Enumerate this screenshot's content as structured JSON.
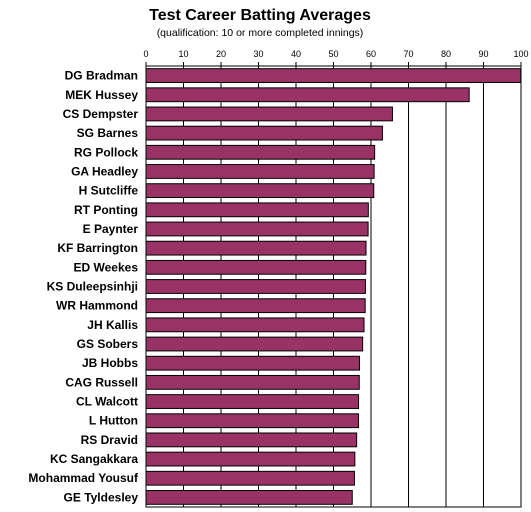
{
  "chart_data": {
    "type": "bar",
    "orientation": "horizontal",
    "title": "Test Career Batting Averages",
    "subtitle": "(qualification: 10 or more completed innings)",
    "xlabel": "",
    "ylabel": "",
    "xlim": [
      0,
      100
    ],
    "ticks": [
      "0",
      "10",
      "20",
      "30",
      "40",
      "50",
      "60",
      "70",
      "80",
      "90",
      "100"
    ],
    "grid": true,
    "legend": "none",
    "bar_color": "#993366",
    "categories": [
      "DG Bradman",
      "MEK Hussey",
      "CS Dempster",
      "SG Barnes",
      "RG Pollock",
      "GA Headley",
      "H Sutcliffe",
      "RT Ponting",
      "E Paynter",
      "KF Barrington",
      "ED Weekes",
      "KS Duleepsinhji",
      "WR Hammond",
      "JH Kallis",
      "GS Sobers",
      "JB Hobbs",
      "CAG Russell",
      "CL Walcott",
      "L Hutton",
      "RS Dravid",
      "KC Sangakkara",
      "Mohammad Yousuf",
      "GE Tyldesley"
    ],
    "values": [
      99.94,
      86.18,
      65.72,
      63.05,
      60.97,
      60.83,
      60.73,
      59.29,
      59.23,
      58.67,
      58.61,
      58.52,
      58.45,
      58.14,
      57.78,
      56.94,
      56.87,
      56.68,
      56.67,
      56.17,
      55.69,
      55.58,
      55.0
    ]
  }
}
